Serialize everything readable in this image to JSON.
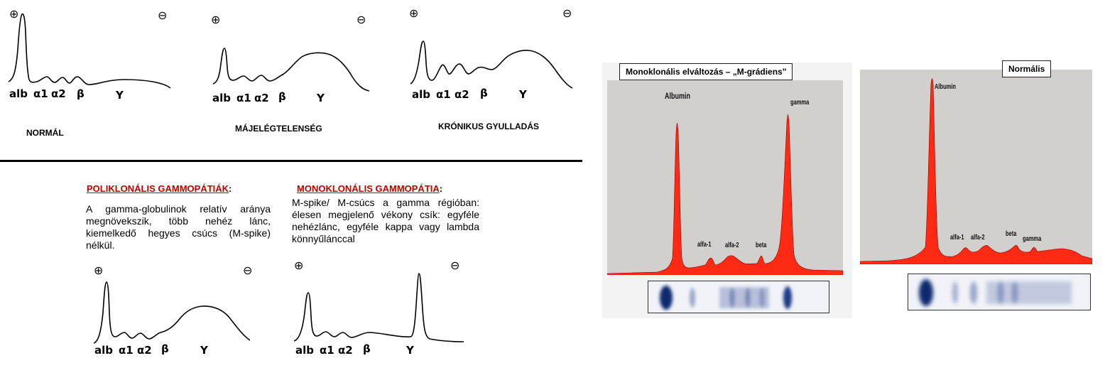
{
  "top_row": [
    {
      "id": "normal",
      "name": "NORMÁL",
      "plus": "⊕",
      "minus": "⊖",
      "labels": {
        "alb": "alb",
        "a1": "α1",
        "a2": "α2",
        "b": "β",
        "g": "Y"
      }
    },
    {
      "id": "liver",
      "name": "MÁJELÉGTELENSÉG",
      "plus": "⊕",
      "minus": "⊖",
      "labels": {
        "alb": "alb",
        "a1": "α1",
        "a2": "α2",
        "b": "β",
        "g": "Y"
      }
    },
    {
      "id": "chronic",
      "name": "KRÓNIKUS GYULLADÁS",
      "plus": "⊕",
      "minus": "⊖",
      "labels": {
        "alb": "alb",
        "a1": "α1",
        "a2": "α2",
        "b": "β",
        "g": "Y"
      }
    }
  ],
  "bottom_row": [
    {
      "id": "poly",
      "heading": "POLIKLONÁLIS GAMMOPÁTIÁK",
      "colon": ":",
      "text": "A gamma-globulinok relatív aránya megnövekszik, több nehéz lánc, kiemelkedő hegyes csúcs (M-spike) nélkül.",
      "plus": "⊕",
      "minus": "⊖",
      "labels": {
        "alb": "alb",
        "a1": "α1",
        "a2": "α2",
        "b": "β",
        "g": "Y"
      }
    },
    {
      "id": "mono",
      "heading": "MONOKLONÁLIS GAMMOPÁTIA",
      "colon": ":",
      "text": "M-spike/ M-csúcs a gamma régióban: élesen megjelenő vékony csík: egyféle nehézlánc, egyféle kappa vagy lambda könnyűlánccal",
      "plus": "⊕",
      "minus": "⊖",
      "labels": {
        "alb": "alb",
        "a1": "α1",
        "a2": "α2",
        "b": "β",
        "g": "Y"
      }
    }
  ],
  "photo_panels": [
    {
      "id": "monoclonal",
      "title": "Monoklonális elváltozás – „M-grádiens\"",
      "labels": {
        "albumin": "Albumin",
        "alfa1": "alfa-1",
        "alfa2": "alfa-2",
        "beta": "beta",
        "gamma": "gamma"
      }
    },
    {
      "id": "normalis",
      "title": "Normális",
      "labels": {
        "albumin": "Albumin",
        "alfa1": "alfa-1",
        "alfa2": "alfa-2",
        "beta": "beta",
        "gamma": "gamma"
      }
    }
  ],
  "colors": {
    "heading_red": "#c00000",
    "peak_fill": "#ff2a14",
    "panel_bg": "#d2d0cc",
    "gel_band": "#0d2a6e"
  }
}
